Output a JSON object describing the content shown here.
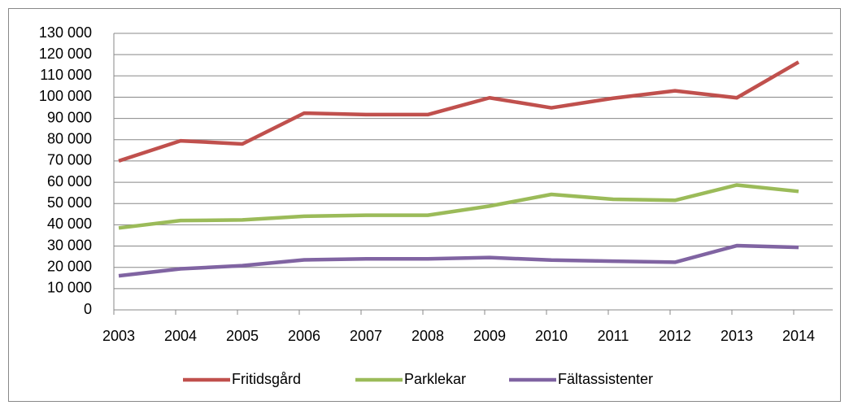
{
  "chart_data": {
    "type": "line",
    "categories": [
      "2003",
      "2004",
      "2005",
      "2006",
      "2007",
      "2008",
      "2009",
      "2010",
      "2011",
      "2012",
      "2013",
      "2014"
    ],
    "series": [
      {
        "name": "Fritidsgård",
        "color": "#c0504d",
        "values": [
          70000,
          79500,
          78000,
          92500,
          91800,
          91800,
          99700,
          95000,
          99500,
          103000,
          99700,
          116500
        ]
      },
      {
        "name": "Parklekar",
        "color": "#9bbb59",
        "values": [
          38500,
          42000,
          42300,
          44000,
          44500,
          44500,
          48800,
          54300,
          52000,
          51500,
          58700,
          55700
        ]
      },
      {
        "name": "Fältassistenter",
        "color": "#8064a2",
        "values": [
          16000,
          19300,
          20800,
          23500,
          24000,
          24000,
          24600,
          23400,
          22900,
          22400,
          30200,
          29400
        ]
      }
    ],
    "ylim": [
      0,
      130000
    ],
    "yticks": [
      0,
      {
        "value": 10000,
        "label": "10 000"
      },
      {
        "value": 20000,
        "label": "20 000"
      },
      {
        "value": 30000,
        "label": "30 000"
      },
      {
        "value": 40000,
        "label": "40 000"
      },
      {
        "value": 50000,
        "label": "50 000"
      },
      {
        "value": 60000,
        "label": "60 000"
      },
      {
        "value": 70000,
        "label": "70 000"
      },
      {
        "value": 80000,
        "label": "80 000"
      },
      {
        "value": 90000,
        "label": "90 000"
      },
      {
        "value": 100000,
        "label": "100 000"
      },
      {
        "value": 110000,
        "label": "110 000"
      },
      {
        "value": 120000,
        "label": "120 000"
      },
      {
        "value": 130000,
        "label": "130 000"
      }
    ],
    "grid": true,
    "legend": "bottom"
  }
}
